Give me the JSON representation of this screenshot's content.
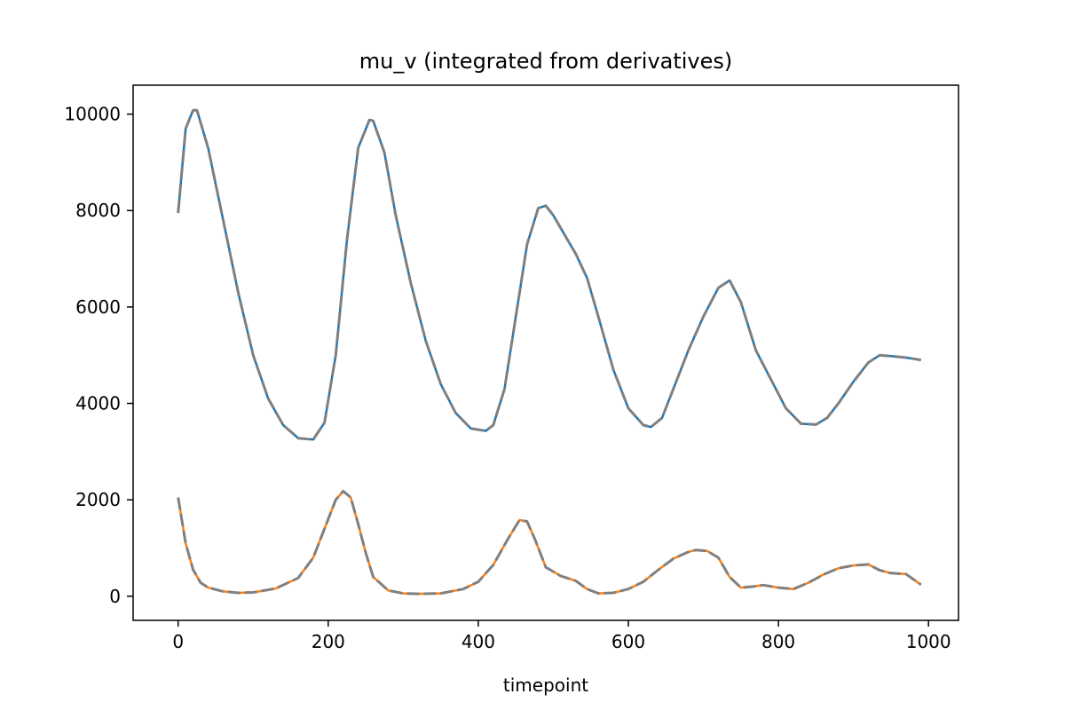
{
  "chart_data": {
    "type": "line",
    "title": "mu_v (integrated from derivatives)",
    "xlabel": "timepoint",
    "ylabel": "",
    "xlim": [
      -60,
      1040
    ],
    "ylim": [
      -500,
      10600
    ],
    "xticks": [
      0,
      200,
      400,
      600,
      800,
      1000
    ],
    "xtick_labels": [
      "0",
      "200",
      "400",
      "600",
      "800",
      "1000"
    ],
    "yticks": [
      0,
      2000,
      4000,
      6000,
      8000,
      10000
    ],
    "ytick_labels": [
      "0",
      "2000",
      "4000",
      "6000",
      "8000",
      "10000"
    ],
    "grid": false,
    "series": [
      {
        "color": "#1f77b4",
        "style": "solid",
        "x": [
          0,
          10,
          20,
          25,
          40,
          60,
          80,
          100,
          120,
          140,
          160,
          180,
          195,
          210,
          225,
          240,
          255,
          260,
          275,
          290,
          310,
          330,
          350,
          370,
          390,
          410,
          420,
          435,
          450,
          465,
          480,
          490,
          500,
          515,
          530,
          545,
          560,
          580,
          600,
          620,
          630,
          645,
          660,
          680,
          700,
          720,
          735,
          750,
          770,
          790,
          810,
          830,
          850,
          865,
          880,
          900,
          920,
          935,
          950,
          970,
          990
        ],
        "y": [
          7950,
          9700,
          10080,
          10080,
          9300,
          7800,
          6300,
          5000,
          4100,
          3550,
          3280,
          3250,
          3600,
          5000,
          7400,
          9300,
          9880,
          9860,
          9200,
          7900,
          6500,
          5300,
          4400,
          3800,
          3480,
          3430,
          3550,
          4300,
          5800,
          7300,
          8050,
          8100,
          7900,
          7500,
          7100,
          6600,
          5800,
          4700,
          3900,
          3550,
          3510,
          3700,
          4300,
          5100,
          5800,
          6400,
          6550,
          6100,
          5100,
          4500,
          3900,
          3580,
          3560,
          3700,
          4000,
          4450,
          4850,
          5000,
          4980,
          4950,
          4900
        ]
      },
      {
        "color": "#ff7f0e",
        "style": "solid",
        "x": [
          0,
          10,
          20,
          30,
          40,
          60,
          80,
          100,
          130,
          160,
          180,
          195,
          210,
          220,
          230,
          240,
          250,
          260,
          280,
          300,
          320,
          350,
          380,
          400,
          420,
          440,
          455,
          465,
          475,
          490,
          510,
          530,
          545,
          560,
          580,
          600,
          620,
          640,
          660,
          680,
          690,
          705,
          720,
          735,
          750,
          765,
          780,
          800,
          820,
          840,
          860,
          880,
          900,
          920,
          935,
          950,
          970,
          990
        ],
        "y": [
          2050,
          1100,
          550,
          280,
          180,
          100,
          70,
          80,
          160,
          380,
          800,
          1400,
          2000,
          2180,
          2050,
          1500,
          900,
          400,
          120,
          60,
          50,
          60,
          150,
          300,
          650,
          1200,
          1580,
          1550,
          1200,
          600,
          420,
          320,
          150,
          60,
          70,
          150,
          300,
          550,
          780,
          920,
          960,
          940,
          800,
          400,
          180,
          200,
          230,
          180,
          150,
          280,
          450,
          580,
          640,
          660,
          540,
          480,
          460,
          240
        ]
      },
      {
        "color": "#808080",
        "style": "dashed",
        "x": [
          0,
          10,
          20,
          25,
          40,
          60,
          80,
          100,
          120,
          140,
          160,
          180,
          195,
          210,
          225,
          240,
          255,
          260,
          275,
          290,
          310,
          330,
          350,
          370,
          390,
          410,
          420,
          435,
          450,
          465,
          480,
          490,
          500,
          515,
          530,
          545,
          560,
          580,
          600,
          620,
          630,
          645,
          660,
          680,
          700,
          720,
          735,
          750,
          770,
          790,
          810,
          830,
          850,
          865,
          880,
          900,
          920,
          935,
          950,
          970,
          990
        ],
        "y": [
          7950,
          9700,
          10080,
          10080,
          9300,
          7800,
          6300,
          5000,
          4100,
          3550,
          3280,
          3250,
          3600,
          5000,
          7400,
          9300,
          9880,
          9860,
          9200,
          7900,
          6500,
          5300,
          4400,
          3800,
          3480,
          3430,
          3550,
          4300,
          5800,
          7300,
          8050,
          8100,
          7900,
          7500,
          7100,
          6600,
          5800,
          4700,
          3900,
          3550,
          3510,
          3700,
          4300,
          5100,
          5800,
          6400,
          6550,
          6100,
          5100,
          4500,
          3900,
          3580,
          3560,
          3700,
          4000,
          4450,
          4850,
          5000,
          4980,
          4950,
          4900
        ]
      },
      {
        "color": "#808080",
        "style": "dashed",
        "x": [
          0,
          10,
          20,
          30,
          40,
          60,
          80,
          100,
          130,
          160,
          180,
          195,
          210,
          220,
          230,
          240,
          250,
          260,
          280,
          300,
          320,
          350,
          380,
          400,
          420,
          440,
          455,
          465,
          475,
          490,
          510,
          530,
          545,
          560,
          580,
          600,
          620,
          640,
          660,
          680,
          690,
          705,
          720,
          735,
          750,
          765,
          780,
          800,
          820,
          840,
          860,
          880,
          900,
          920,
          935,
          950,
          970,
          990
        ],
        "y": [
          2050,
          1100,
          550,
          280,
          180,
          100,
          70,
          80,
          160,
          380,
          800,
          1400,
          2000,
          2180,
          2050,
          1500,
          900,
          400,
          120,
          60,
          50,
          60,
          150,
          300,
          650,
          1200,
          1580,
          1550,
          1200,
          600,
          420,
          320,
          150,
          60,
          70,
          150,
          300,
          550,
          780,
          920,
          960,
          940,
          800,
          400,
          180,
          200,
          230,
          180,
          150,
          280,
          450,
          580,
          640,
          660,
          540,
          480,
          460,
          240
        ]
      }
    ]
  }
}
